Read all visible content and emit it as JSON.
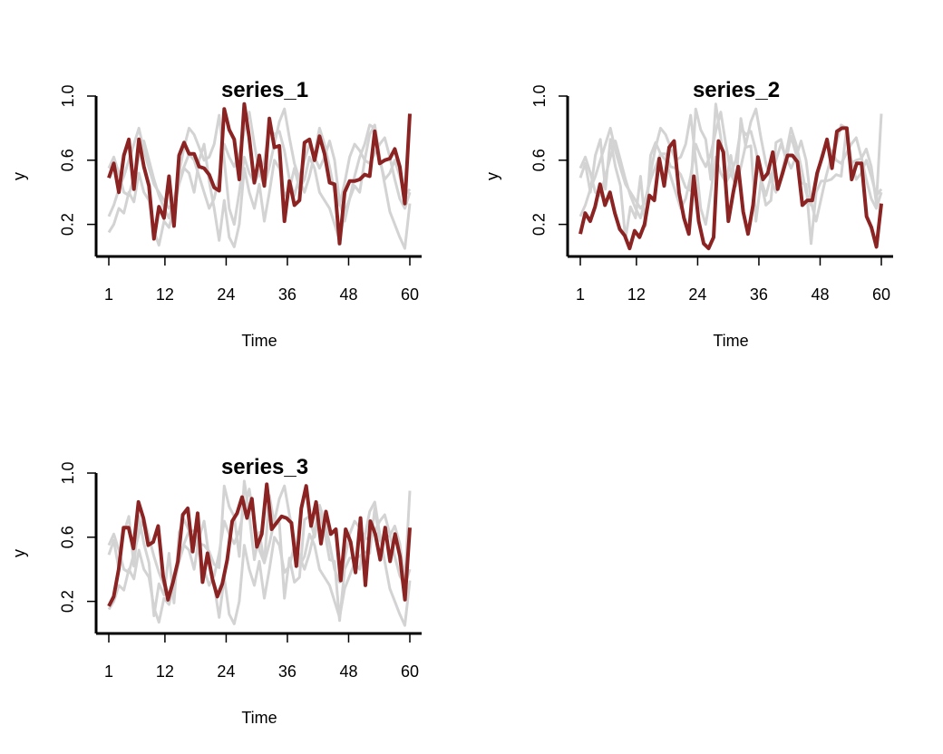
{
  "chart_data": [
    {
      "type": "line",
      "title": "series_1",
      "xlabel": "Time",
      "ylabel": "y",
      "xlim": [
        1,
        60
      ],
      "ylim": [
        0.0,
        1.0
      ],
      "xticks": [
        "1",
        "12",
        "24",
        "36",
        "48",
        "60"
      ],
      "yticks": [
        "0.2",
        "0.6",
        "1.0"
      ],
      "colors": {
        "highlight": "#8B2323",
        "background": "#D3D3D3"
      },
      "highlight_series": 0,
      "series": [
        {
          "values": [
            0.49,
            0.58,
            0.4,
            0.63,
            0.73,
            0.42,
            0.73,
            0.56,
            0.44,
            0.11,
            0.31,
            0.24,
            0.5,
            0.19,
            0.63,
            0.71,
            0.64,
            0.64,
            0.56,
            0.55,
            0.51,
            0.43,
            0.41,
            0.92,
            0.79,
            0.73,
            0.48,
            0.95,
            0.74,
            0.46,
            0.63,
            0.44,
            0.86,
            0.68,
            0.69,
            0.22,
            0.47,
            0.32,
            0.35,
            0.71,
            0.73,
            0.6,
            0.75,
            0.64,
            0.46,
            0.45,
            0.08,
            0.4,
            0.47,
            0.47,
            0.48,
            0.51,
            0.5,
            0.78,
            0.58,
            0.6,
            0.61,
            0.67,
            0.56,
            0.33,
            0.89
          ]
        },
        {
          "values": [
            0.15,
            0.2,
            0.3,
            0.27,
            0.4,
            0.34,
            0.52,
            0.4,
            0.35,
            0.16,
            0.07,
            0.22,
            0.18,
            0.3,
            0.45,
            0.55,
            0.52,
            0.4,
            0.6,
            0.7,
            0.47,
            0.3,
            0.1,
            0.35,
            0.12,
            0.06,
            0.2,
            0.55,
            0.4,
            0.3,
            0.45,
            0.22,
            0.4,
            0.6,
            0.55,
            0.38,
            0.42,
            0.55,
            0.42,
            0.48,
            0.62,
            0.55,
            0.4,
            0.35,
            0.3,
            0.2,
            0.1,
            0.28,
            0.36,
            0.44,
            0.4,
            0.6,
            0.76,
            0.82,
            0.62,
            0.45,
            0.28,
            0.2,
            0.12,
            0.05,
            0.33
          ]
        },
        {
          "values": [
            0.25,
            0.32,
            0.42,
            0.5,
            0.6,
            0.7,
            0.8,
            0.66,
            0.55,
            0.45,
            0.4,
            0.35,
            0.3,
            0.34,
            0.52,
            0.68,
            0.8,
            0.76,
            0.68,
            0.6,
            0.62,
            0.7,
            0.88,
            0.6,
            0.3,
            0.2,
            0.4,
            0.62,
            0.52,
            0.46,
            0.52,
            0.6,
            0.8,
            0.76,
            0.78,
            0.66,
            0.48,
            0.38,
            0.5,
            0.6,
            0.7,
            0.62,
            0.55,
            0.62,
            0.72,
            0.6,
            0.34,
            0.22,
            0.36,
            0.5,
            0.62,
            0.7,
            0.82,
            0.8,
            0.6,
            0.48,
            0.52,
            0.6,
            0.5,
            0.38,
            0.42
          ]
        },
        {
          "values": [
            0.55,
            0.62,
            0.52,
            0.4,
            0.38,
            0.5,
            0.62,
            0.72,
            0.6,
            0.48,
            0.38,
            0.3,
            0.24,
            0.36,
            0.48,
            0.56,
            0.64,
            0.6,
            0.5,
            0.4,
            0.3,
            0.36,
            0.5,
            0.7,
            0.62,
            0.56,
            0.64,
            0.78,
            0.9,
            0.7,
            0.52,
            0.44,
            0.56,
            0.7,
            0.84,
            0.92,
            0.74,
            0.58,
            0.48,
            0.4,
            0.5,
            0.64,
            0.8,
            0.7,
            0.56,
            0.4,
            0.32,
            0.46,
            0.62,
            0.7,
            0.66,
            0.6,
            0.58,
            0.64,
            0.7,
            0.74,
            0.62,
            0.48,
            0.36,
            0.3,
            0.4
          ]
        }
      ]
    },
    {
      "type": "line",
      "title": "series_2",
      "xlabel": "Time",
      "ylabel": "y",
      "xlim": [
        1,
        60
      ],
      "ylim": [
        0.0,
        1.0
      ],
      "xticks": [
        "1",
        "12",
        "24",
        "36",
        "48",
        "60"
      ],
      "yticks": [
        "0.2",
        "0.6",
        "1.0"
      ],
      "colors": {
        "highlight": "#8B2323",
        "background": "#D3D3D3"
      },
      "highlight_series": 1,
      "series": [
        {
          "values": [
            0.49,
            0.58,
            0.4,
            0.63,
            0.73,
            0.42,
            0.73,
            0.56,
            0.44,
            0.11,
            0.31,
            0.24,
            0.5,
            0.19,
            0.63,
            0.71,
            0.64,
            0.64,
            0.56,
            0.55,
            0.51,
            0.43,
            0.41,
            0.92,
            0.79,
            0.73,
            0.48,
            0.95,
            0.74,
            0.46,
            0.63,
            0.44,
            0.86,
            0.68,
            0.69,
            0.22,
            0.47,
            0.32,
            0.35,
            0.71,
            0.73,
            0.6,
            0.75,
            0.64,
            0.46,
            0.45,
            0.08,
            0.4,
            0.47,
            0.47,
            0.48,
            0.51,
            0.5,
            0.78,
            0.58,
            0.6,
            0.61,
            0.67,
            0.56,
            0.33,
            0.89
          ]
        },
        {
          "values": [
            0.14,
            0.27,
            0.22,
            0.31,
            0.45,
            0.32,
            0.4,
            0.27,
            0.17,
            0.13,
            0.05,
            0.16,
            0.12,
            0.2,
            0.38,
            0.35,
            0.61,
            0.44,
            0.68,
            0.72,
            0.4,
            0.24,
            0.14,
            0.5,
            0.22,
            0.08,
            0.05,
            0.12,
            0.72,
            0.65,
            0.22,
            0.4,
            0.56,
            0.28,
            0.14,
            0.32,
            0.62,
            0.48,
            0.52,
            0.65,
            0.42,
            0.52,
            0.63,
            0.63,
            0.59,
            0.32,
            0.35,
            0.35,
            0.52,
            0.62,
            0.73,
            0.55,
            0.78,
            0.8,
            0.8,
            0.48,
            0.58,
            0.58,
            0.25,
            0.18,
            0.06,
            0.33
          ]
        },
        {
          "values": [
            0.25,
            0.32,
            0.42,
            0.5,
            0.6,
            0.7,
            0.8,
            0.66,
            0.55,
            0.45,
            0.4,
            0.35,
            0.3,
            0.34,
            0.52,
            0.68,
            0.8,
            0.76,
            0.68,
            0.6,
            0.62,
            0.7,
            0.88,
            0.6,
            0.3,
            0.2,
            0.4,
            0.62,
            0.52,
            0.46,
            0.52,
            0.6,
            0.8,
            0.76,
            0.78,
            0.66,
            0.48,
            0.38,
            0.5,
            0.6,
            0.7,
            0.62,
            0.55,
            0.62,
            0.72,
            0.6,
            0.34,
            0.22,
            0.36,
            0.5,
            0.62,
            0.7,
            0.82,
            0.8,
            0.6,
            0.48,
            0.52,
            0.6,
            0.5,
            0.38,
            0.42
          ]
        },
        {
          "values": [
            0.55,
            0.62,
            0.52,
            0.4,
            0.38,
            0.5,
            0.62,
            0.72,
            0.6,
            0.48,
            0.38,
            0.3,
            0.24,
            0.36,
            0.48,
            0.56,
            0.64,
            0.6,
            0.5,
            0.4,
            0.3,
            0.36,
            0.5,
            0.7,
            0.62,
            0.56,
            0.64,
            0.78,
            0.9,
            0.7,
            0.52,
            0.44,
            0.56,
            0.7,
            0.84,
            0.92,
            0.74,
            0.58,
            0.48,
            0.4,
            0.5,
            0.64,
            0.8,
            0.7,
            0.56,
            0.4,
            0.32,
            0.46,
            0.62,
            0.7,
            0.66,
            0.6,
            0.58,
            0.64,
            0.7,
            0.74,
            0.62,
            0.48,
            0.36,
            0.3,
            0.4
          ]
        }
      ]
    },
    {
      "type": "line",
      "title": "series_3",
      "xlabel": "Time",
      "ylabel": "y",
      "xlim": [
        1,
        60
      ],
      "ylim": [
        0.0,
        1.0
      ],
      "xticks": [
        "1",
        "12",
        "24",
        "36",
        "48",
        "60"
      ],
      "yticks": [
        "0.2",
        "0.6",
        "1.0"
      ],
      "colors": {
        "highlight": "#8B2323",
        "background": "#D3D3D3"
      },
      "highlight_series": 2,
      "series": [
        {
          "values": [
            0.49,
            0.58,
            0.4,
            0.63,
            0.73,
            0.42,
            0.73,
            0.56,
            0.44,
            0.11,
            0.31,
            0.24,
            0.5,
            0.19,
            0.63,
            0.71,
            0.64,
            0.64,
            0.56,
            0.55,
            0.51,
            0.43,
            0.41,
            0.92,
            0.79,
            0.73,
            0.48,
            0.95,
            0.74,
            0.46,
            0.63,
            0.44,
            0.86,
            0.68,
            0.69,
            0.22,
            0.47,
            0.32,
            0.35,
            0.71,
            0.73,
            0.6,
            0.75,
            0.64,
            0.46,
            0.45,
            0.08,
            0.4,
            0.47,
            0.47,
            0.48,
            0.51,
            0.5,
            0.78,
            0.58,
            0.6,
            0.61,
            0.67,
            0.56,
            0.33,
            0.89
          ]
        },
        {
          "values": [
            0.15,
            0.2,
            0.3,
            0.27,
            0.4,
            0.34,
            0.52,
            0.4,
            0.35,
            0.16,
            0.07,
            0.22,
            0.18,
            0.3,
            0.45,
            0.55,
            0.52,
            0.4,
            0.6,
            0.7,
            0.47,
            0.3,
            0.1,
            0.35,
            0.12,
            0.06,
            0.2,
            0.55,
            0.4,
            0.3,
            0.45,
            0.22,
            0.4,
            0.6,
            0.55,
            0.38,
            0.42,
            0.55,
            0.42,
            0.48,
            0.62,
            0.55,
            0.4,
            0.35,
            0.3,
            0.2,
            0.1,
            0.28,
            0.36,
            0.44,
            0.4,
            0.6,
            0.76,
            0.82,
            0.62,
            0.45,
            0.28,
            0.2,
            0.12,
            0.05,
            0.33
          ]
        },
        {
          "values": [
            0.17,
            0.23,
            0.4,
            0.66,
            0.66,
            0.53,
            0.82,
            0.72,
            0.55,
            0.57,
            0.67,
            0.36,
            0.21,
            0.32,
            0.45,
            0.74,
            0.78,
            0.51,
            0.75,
            0.32,
            0.5,
            0.34,
            0.23,
            0.31,
            0.46,
            0.7,
            0.75,
            0.85,
            0.72,
            0.84,
            0.54,
            0.62,
            0.93,
            0.65,
            0.69,
            0.73,
            0.72,
            0.69,
            0.42,
            0.78,
            0.92,
            0.67,
            0.82,
            0.56,
            0.76,
            0.62,
            0.65,
            0.33,
            0.65,
            0.57,
            0.38,
            0.72,
            0.3,
            0.7,
            0.62,
            0.46,
            0.66,
            0.45,
            0.62,
            0.48,
            0.21,
            0.66
          ]
        },
        {
          "values": [
            0.55,
            0.62,
            0.52,
            0.4,
            0.38,
            0.5,
            0.62,
            0.72,
            0.6,
            0.48,
            0.38,
            0.3,
            0.24,
            0.36,
            0.48,
            0.56,
            0.64,
            0.6,
            0.5,
            0.4,
            0.3,
            0.36,
            0.5,
            0.7,
            0.62,
            0.56,
            0.64,
            0.78,
            0.9,
            0.7,
            0.52,
            0.44,
            0.56,
            0.7,
            0.84,
            0.92,
            0.74,
            0.58,
            0.48,
            0.4,
            0.5,
            0.64,
            0.8,
            0.7,
            0.56,
            0.4,
            0.32,
            0.46,
            0.62,
            0.7,
            0.66,
            0.6,
            0.58,
            0.64,
            0.7,
            0.74,
            0.62,
            0.48,
            0.36,
            0.3,
            0.4
          ]
        }
      ]
    }
  ]
}
